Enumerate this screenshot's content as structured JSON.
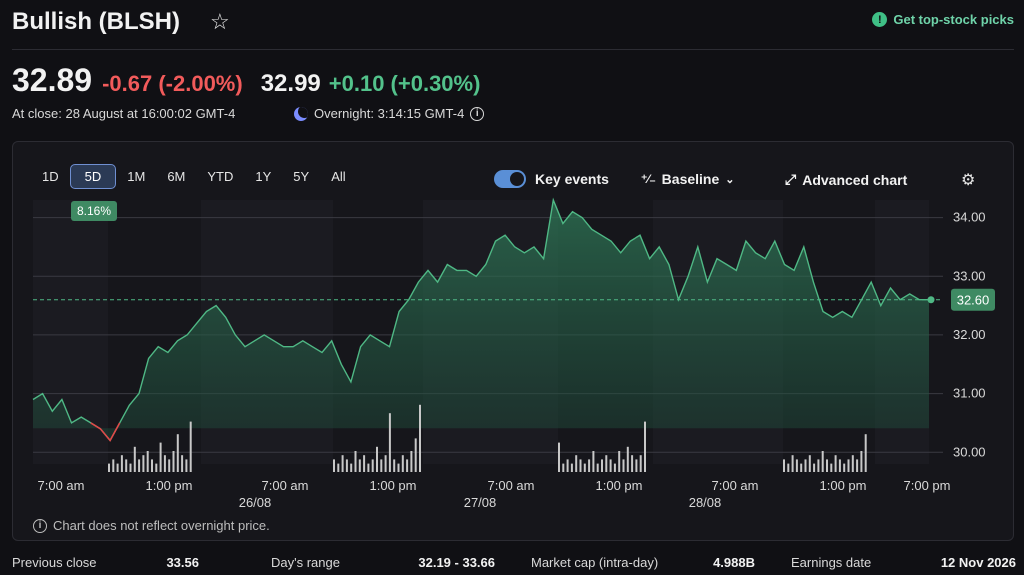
{
  "header": {
    "title": "Bullish (BLSH)",
    "star_icon": "star-outline-icon",
    "top_picks_label": "Get top-stock picks",
    "top_picks_icon": "exclamation-icon"
  },
  "quote": {
    "close_price": "32.89",
    "close_change": "-0.67 (-2.00%)",
    "overnight_price": "32.99",
    "overnight_change": "+0.10 (+0.30%)",
    "close_time": "At close: 28 August at 16:00:02 GMT-4",
    "overnight_time": "Overnight: 3:14:15 GMT-4",
    "colors": {
      "down": "#f25b5b",
      "up": "#53c28b"
    }
  },
  "chart_panel": {
    "ranges": [
      "1D",
      "5D",
      "1M",
      "6M",
      "YTD",
      "1Y",
      "5Y",
      "All"
    ],
    "active_range": "5D",
    "range_change_badge": "8.16%",
    "key_events_label": "Key events",
    "key_events_on": true,
    "baseline_label": "Baseline",
    "advanced_chart_label": "Advanced chart",
    "disclaimer": "Chart does not reflect overnight price."
  },
  "chart_data": {
    "type": "area",
    "y_ticks": [
      "34.00",
      "33.00",
      "32.00",
      "31.00",
      "30.00"
    ],
    "ylim": [
      29.8,
      34.3
    ],
    "current_price_label": "32.60",
    "current_price": 32.6,
    "baseline_value": 30.41,
    "x_time_labels": [
      "7:00 am",
      "1:00 pm",
      "7:00 am",
      "1:00 pm",
      "7:00 am",
      "1:00 pm",
      "7:00 am",
      "1:00 pm",
      "7:00 pm"
    ],
    "x_date_labels": [
      "26/08",
      "27/08",
      "28/08"
    ],
    "series": [
      {
        "values": [
          30.9,
          31.0,
          30.7,
          30.9,
          30.5,
          30.6,
          30.5,
          30.4,
          30.2,
          30.5,
          30.8,
          31.0,
          31.6,
          31.8,
          31.7,
          31.9,
          32.0,
          32.2,
          32.4,
          32.5,
          32.3,
          32.0,
          31.8,
          31.9,
          32.0,
          31.9,
          31.8,
          31.8,
          31.9,
          31.8,
          31.7,
          31.9,
          31.5,
          31.2,
          31.8,
          32.0,
          31.9,
          31.8,
          32.4,
          32.6,
          32.9,
          33.1,
          32.9,
          33.2,
          33.1,
          33.1,
          33.0,
          33.2,
          33.6,
          33.7,
          33.5,
          33.4,
          33.5,
          33.3,
          34.3,
          33.9,
          34.1,
          34.0,
          33.8,
          33.7,
          33.6,
          33.4,
          33.6,
          33.7,
          33.3,
          33.5,
          33.2,
          32.6,
          33.0,
          33.5,
          32.9,
          33.3,
          33.2,
          33.1,
          33.6,
          33.4,
          33.3,
          33.6,
          33.2,
          33.1,
          33.5,
          32.9,
          32.4,
          32.3,
          32.4,
          32.3,
          32.6,
          32.9,
          32.5,
          32.8,
          32.6,
          32.7,
          32.6,
          32.6
        ]
      }
    ],
    "volume": [
      {
        "session": 1,
        "values": [
          2,
          3,
          2,
          4,
          3,
          2,
          6,
          3,
          4,
          5,
          3,
          2,
          7,
          4,
          3,
          5,
          9,
          4,
          3,
          12
        ]
      },
      {
        "session": 2,
        "values": [
          3,
          2,
          4,
          3,
          2,
          5,
          3,
          4,
          2,
          3,
          6,
          3,
          4,
          14,
          3,
          2,
          4,
          3,
          5,
          8,
          16
        ]
      },
      {
        "session": 3,
        "values": [
          7,
          2,
          3,
          2,
          4,
          3,
          2,
          3,
          5,
          2,
          3,
          4,
          3,
          2,
          5,
          3,
          6,
          4,
          3,
          4,
          12
        ]
      },
      {
        "session": 4,
        "values": [
          3,
          2,
          4,
          3,
          2,
          3,
          4,
          2,
          3,
          5,
          3,
          2,
          4,
          3,
          2,
          3,
          4,
          3,
          5,
          9
        ]
      }
    ],
    "grid": true
  },
  "stats": [
    {
      "label": "Previous close",
      "value": "33.56"
    },
    {
      "label": "Day's range",
      "value": "32.19 - 33.66"
    },
    {
      "label": "Market cap (intra-day)",
      "value": "4.988B"
    },
    {
      "label": "Earnings date",
      "value": "12 Nov 2026"
    }
  ]
}
